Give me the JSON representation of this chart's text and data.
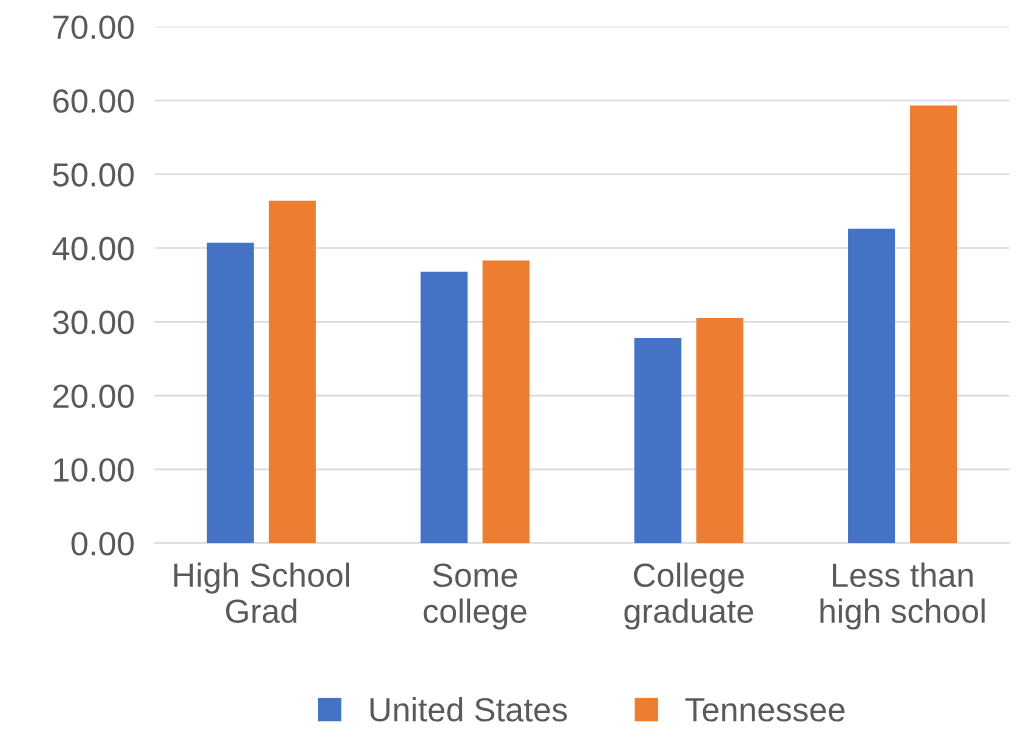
{
  "chart_data": {
    "type": "bar",
    "categories": [
      "High School\nGrad",
      "Some\ncollege",
      "College\ngraduate",
      "Less than\nhigh school"
    ],
    "series": [
      {
        "name": "United States",
        "color": "#4472c4",
        "values": [
          40.7,
          36.8,
          27.8,
          42.6
        ]
      },
      {
        "name": "Tennessee",
        "color": "#ed7d31",
        "values": [
          46.4,
          38.3,
          30.5,
          59.3
        ]
      }
    ],
    "ylim": [
      0,
      70
    ],
    "yticks": [
      {
        "value": 0,
        "label": "0.00"
      },
      {
        "value": 10,
        "label": "10.00"
      },
      {
        "value": 20,
        "label": "20.00"
      },
      {
        "value": 30,
        "label": "30.00"
      },
      {
        "value": 40,
        "label": "40.00"
      },
      {
        "value": 50,
        "label": "50.00"
      },
      {
        "value": 60,
        "label": "60.00"
      },
      {
        "value": 70,
        "label": "70.00"
      }
    ],
    "grid": "y",
    "legend": "bottom"
  }
}
